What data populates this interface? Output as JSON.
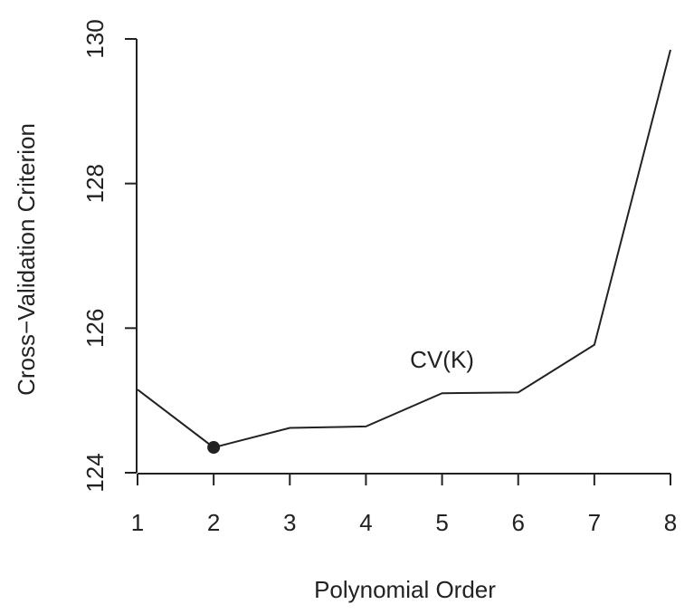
{
  "chart_data": {
    "type": "line",
    "title": "",
    "xlabel": "Polynomial Order",
    "ylabel": "Cross−Validation Criterion",
    "xlim": [
      1,
      8
    ],
    "ylim": [
      124,
      130
    ],
    "x_ticks": [
      1,
      2,
      3,
      4,
      5,
      6,
      7,
      8
    ],
    "x_tick_labels": [
      "1",
      "2",
      "3",
      "4",
      "5",
      "6",
      "7",
      "8"
    ],
    "y_ticks": [
      124,
      126,
      128,
      130
    ],
    "y_tick_labels": [
      "124",
      "126",
      "128",
      "130"
    ],
    "grid": false,
    "series": [
      {
        "name": "CV(K)",
        "x": [
          1,
          2,
          3,
          4,
          5,
          6,
          7,
          8
        ],
        "y": [
          125.15,
          124.35,
          124.62,
          124.64,
          125.1,
          125.11,
          125.77,
          129.85
        ]
      }
    ],
    "highlight_point": {
      "x": 2,
      "y": 124.35
    },
    "annotations": [
      {
        "text": "CV(K)",
        "x": 5.0,
        "y": 125.45
      }
    ],
    "colors": {
      "line": "#222222",
      "marker": "#222222"
    }
  }
}
